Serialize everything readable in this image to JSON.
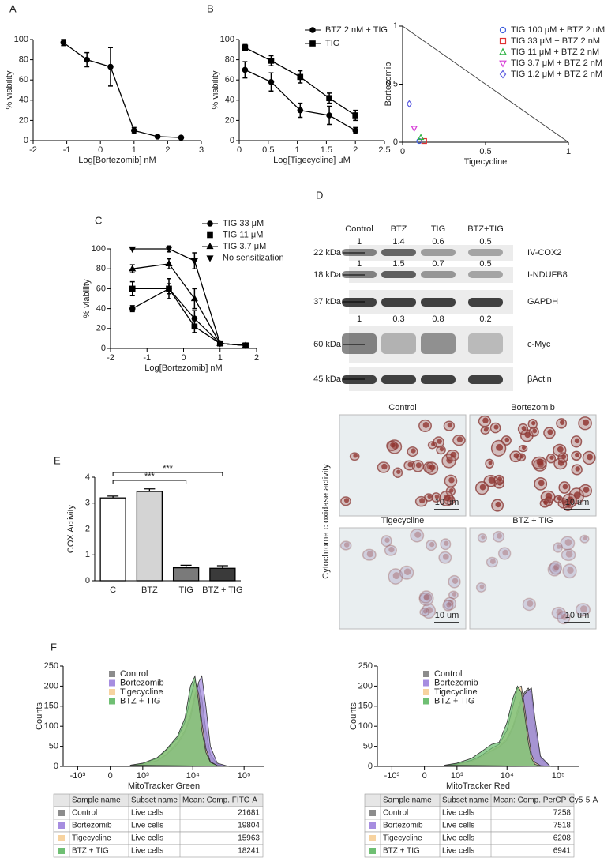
{
  "chart_data": [
    {
      "type": "line",
      "label": "A",
      "x_label": "Log[Bortezomib] nM",
      "y_label": "% viability",
      "x": [
        -1.1,
        -0.4,
        0.3,
        1,
        1.7,
        2.4
      ],
      "series": [
        {
          "color": "#000000",
          "marker": "circle",
          "values": [
            97,
            80,
            73,
            10,
            4,
            3
          ],
          "errors": [
            3,
            7,
            19,
            3,
            1,
            1
          ]
        }
      ],
      "xlim": [
        -2,
        3
      ],
      "xticks": [
        -2,
        -1,
        0,
        1,
        2,
        3
      ],
      "ylim": [
        0,
        100
      ],
      "yticks": [
        0,
        20,
        40,
        60,
        80,
        100
      ]
    },
    {
      "type": "line",
      "label": "B",
      "x_label": "Log[Tigecycline] μM",
      "y_label": "% viability",
      "x": [
        0.1,
        0.55,
        1.05,
        1.55,
        2.0
      ],
      "series": [
        {
          "name": "BTZ 2 nM + TIG",
          "color": "#000000",
          "marker": "circle",
          "values": [
            70,
            58,
            30,
            25,
            10
          ],
          "errors": [
            8,
            9,
            7,
            9,
            3
          ]
        },
        {
          "name": "TIG",
          "color": "#000000",
          "marker": "square",
          "values": [
            92,
            79,
            63,
            42,
            25
          ],
          "errors": [
            3,
            5,
            6,
            5,
            5
          ]
        }
      ],
      "xlim": [
        0,
        2.5
      ],
      "xticks": [
        0,
        0.5,
        1,
        1.5,
        2,
        2.5
      ],
      "ylim": [
        0,
        100
      ],
      "yticks": [
        0,
        20,
        40,
        60,
        80,
        100
      ],
      "legend": "upper right"
    },
    {
      "type": "scatter",
      "x_label": "Tigecycline",
      "y_label": "Bortezomib",
      "series": [
        {
          "name": "TIG 100 μM + BTZ 2 nM",
          "color": "#3b5bdb",
          "marker": "circle",
          "x": [
            0.1
          ],
          "values": [
            0.01
          ]
        },
        {
          "name": "TIG 33 μM + BTZ 2 nM",
          "color": "#e03131",
          "marker": "square",
          "x": [
            0.13
          ],
          "values": [
            0.01
          ]
        },
        {
          "name": "TIG 11 μM + BTZ 2 nM",
          "color": "#2fb344",
          "marker": "triangle",
          "x": [
            0.11
          ],
          "values": [
            0.04
          ]
        },
        {
          "name": "TIG 3.7 μM + BTZ 2 nM",
          "color": "#d63bd6",
          "marker": "triangle-down",
          "x": [
            0.07
          ],
          "values": [
            0.12
          ]
        },
        {
          "name": "TIG 1.2 μM + BTZ 2 nM",
          "color": "#5c5ce0",
          "marker": "diamond",
          "x": [
            0.04
          ],
          "values": [
            0.33
          ]
        }
      ],
      "xlim": [
        0,
        1
      ],
      "xticks": [
        0,
        0.5,
        1
      ],
      "ylim": [
        0,
        1
      ],
      "yticks": [
        0,
        0.5,
        1
      ],
      "legend": "upper right"
    },
    {
      "type": "line",
      "label": "C",
      "x_label": "Log[Bortezomib] nM",
      "y_label": "% viability",
      "x": [
        -1.4,
        -0.4,
        0.3,
        1,
        1.7
      ],
      "series": [
        {
          "name": "TIG 33 μM",
          "color": "#000000",
          "marker": "circle",
          "values": [
            40,
            60,
            30,
            5,
            3
          ],
          "errors": [
            3,
            5,
            8,
            2,
            1
          ]
        },
        {
          "name": "TIG 11 μM",
          "color": "#000000",
          "marker": "square",
          "values": [
            60,
            60,
            22,
            5,
            3
          ],
          "errors": [
            7,
            10,
            6,
            2,
            1
          ]
        },
        {
          "name": "TIG 3.7 μM",
          "color": "#000000",
          "marker": "triangle",
          "values": [
            80,
            85,
            50,
            5,
            3
          ],
          "errors": [
            4,
            5,
            10,
            2,
            1
          ]
        },
        {
          "name": "No sensitization",
          "color": "#000000",
          "marker": "triangle-down",
          "values": [
            100,
            100,
            88,
            5,
            3
          ],
          "errors": [
            0,
            3,
            8,
            2,
            1
          ]
        }
      ],
      "xlim": [
        -2,
        2
      ],
      "xticks": [
        -2,
        -1,
        0,
        1,
        2
      ],
      "ylim": [
        0,
        100
      ],
      "yticks": [
        0,
        20,
        40,
        60,
        80,
        100
      ],
      "legend": "upper right"
    },
    {
      "type": "bar",
      "label": "E",
      "y_label": "COX Activity",
      "categories": [
        "C",
        "BTZ",
        "TIG",
        "BTZ + TIG"
      ],
      "values": [
        3.2,
        3.45,
        0.5,
        0.48
      ],
      "errors": [
        0.07,
        0.1,
        0.1,
        0.1
      ],
      "colors": [
        "#ffffff",
        "#d4d4d4",
        "#7a7a7a",
        "#3a3a3a"
      ],
      "ylim": [
        0,
        4
      ],
      "yticks": [
        0,
        1,
        2,
        3,
        4
      ],
      "annotations": [
        "***",
        "***"
      ]
    },
    {
      "type": "area",
      "label": "F",
      "x_label": "MitoTracker Green",
      "y_label": "Counts",
      "xscale": "biexponential",
      "x": [
        500,
        1000,
        2000,
        3000,
        5000,
        7000,
        9000,
        11000,
        13000,
        15000,
        18000,
        22000,
        30000,
        50000
      ],
      "series": [
        {
          "name": "Control",
          "color": "#8c8c8c",
          "values": [
            2,
            5,
            15,
            30,
            60,
            90,
            130,
            180,
            205,
            170,
            90,
            30,
            5,
            0
          ]
        },
        {
          "name": "Bortezomib",
          "color": "#a68de0",
          "values": [
            2,
            5,
            14,
            28,
            55,
            85,
            120,
            170,
            210,
            225,
            150,
            50,
            8,
            0
          ]
        },
        {
          "name": "Tigecycline",
          "color": "#f7d3a0",
          "values": [
            3,
            7,
            20,
            40,
            70,
            110,
            170,
            215,
            180,
            110,
            45,
            12,
            2,
            0
          ]
        },
        {
          "name": "BTZ + TIG",
          "color": "#6fbf73",
          "values": [
            3,
            8,
            22,
            42,
            75,
            120,
            200,
            225,
            160,
            90,
            35,
            10,
            2,
            0
          ]
        }
      ],
      "xlim": [
        -2000,
        250000
      ],
      "xticks": [
        {
          "value": -1000,
          "label": "-10³"
        },
        0,
        {
          "value": 1000,
          "label": "10³"
        },
        {
          "value": 10000,
          "label": "10⁴"
        },
        {
          "value": 100000,
          "label": "10⁵"
        }
      ],
      "ylim": [
        0,
        250
      ],
      "yticks": [
        0,
        50,
        100,
        150,
        200,
        250
      ],
      "legend": "upper left"
    },
    {
      "type": "area",
      "x_label": "MitoTracker Red",
      "y_label": "Counts",
      "xscale": "biexponential",
      "x": [
        500,
        1000,
        2000,
        3000,
        5000,
        7000,
        10000,
        13000,
        16000,
        19000,
        22000,
        26000,
        30000,
        35000,
        45000,
        70000
      ],
      "series": [
        {
          "name": "Control",
          "color": "#8c8c8c",
          "values": [
            2,
            5,
            12,
            22,
            40,
            50,
            70,
            100,
            140,
            170,
            185,
            195,
            180,
            100,
            20,
            0
          ]
        },
        {
          "name": "Bortezomib",
          "color": "#a68de0",
          "values": [
            2,
            5,
            12,
            22,
            38,
            48,
            65,
            95,
            130,
            160,
            180,
            190,
            195,
            120,
            25,
            0
          ]
        },
        {
          "name": "Tigecycline",
          "color": "#f7d3a0",
          "values": [
            2,
            6,
            15,
            25,
            45,
            55,
            90,
            150,
            195,
            200,
            150,
            80,
            30,
            10,
            2,
            0
          ]
        },
        {
          "name": "BTZ + TIG",
          "color": "#6fbf73",
          "values": [
            3,
            8,
            20,
            35,
            55,
            60,
            110,
            170,
            200,
            185,
            130,
            60,
            20,
            5,
            1,
            0
          ]
        }
      ],
      "xlim": [
        -2000,
        250000
      ],
      "xticks": [
        {
          "value": -1000,
          "label": "-10³"
        },
        0,
        {
          "value": 1000,
          "label": "10³"
        },
        {
          "value": 10000,
          "label": "10⁴"
        },
        {
          "value": 100000,
          "label": "10⁵"
        }
      ],
      "ylim": [
        0,
        250
      ],
      "yticks": [
        0,
        50,
        100,
        150,
        200,
        250
      ],
      "legend": "upper left"
    }
  ],
  "blot": {
    "label": "D",
    "lanes": [
      "Control",
      "BTZ",
      "TIG",
      "BTZ+TIG"
    ],
    "rows": [
      {
        "size": "22 kDa",
        "protein": "IV-COX2",
        "values": [
          1,
          1.4,
          0.6,
          0.5
        ]
      },
      {
        "size": "18 kDa",
        "protein": "I-NDUFB8",
        "values": [
          1,
          1.5,
          0.7,
          0.5
        ]
      },
      {
        "size": "37 kDa",
        "protein": "GAPDH"
      },
      {
        "size": "60 kDa",
        "protein": "c-Myc",
        "values": [
          1,
          0.3,
          0.8,
          0.2
        ]
      },
      {
        "size": "45 kDa",
        "protein": "βActin"
      }
    ]
  },
  "microscopy": {
    "y_label": "Cytochrome c oxidase activity",
    "panels": [
      "Control",
      "Bortezomib",
      "Tigecycline",
      "BTZ + TIG"
    ],
    "scale_bar": "10 um"
  },
  "tables": [
    {
      "header": [
        "Sample name",
        "Subset name",
        "Mean: Comp. FITC-A"
      ],
      "rows": [
        [
          "Control",
          "Live cells",
          21681
        ],
        [
          "Bortezomib",
          "Live cells",
          19804
        ],
        [
          "Tigecycline",
          "Live cells",
          15963
        ],
        [
          "BTZ + TIG",
          "Live cells",
          18241
        ]
      ]
    },
    {
      "header": [
        "Sample name",
        "Subset name",
        "Mean: Comp. PerCP-Cy5-5-A"
      ],
      "rows": [
        [
          "Control",
          "Live cells",
          7258
        ],
        [
          "Bortezomib",
          "Live cells",
          7518
        ],
        [
          "Tigecycline",
          "Live cells",
          6208
        ],
        [
          "BTZ + TIG",
          "Live cells",
          6941
        ]
      ]
    }
  ]
}
